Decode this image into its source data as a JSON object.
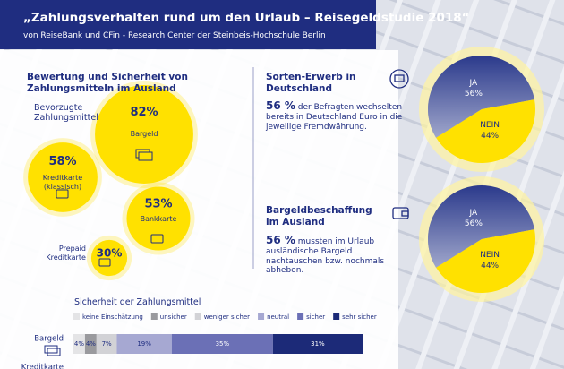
{
  "header": {
    "title": "„Zahlungsverhalten rund um den Urlaub – Reisegeldstudie 2018“",
    "subtitle": "von ReiseBank und CFin - Research Center der Steinbeis-Hochschule Berlin"
  },
  "chart_data": [
    {
      "type": "bubble",
      "title": "Bewertung und Sicherheit von Zahlungsmitteln im Ausland",
      "subtitle": "Bevorzugte Zahlungsmittel",
      "categories": [
        "Bargeld",
        "Kreditkarte (klassisch)",
        "Bankkarte",
        "Prepaid Kreditkarte"
      ],
      "values": [
        82,
        58,
        53,
        30
      ],
      "value_labels": [
        "82%",
        "58%",
        "53%",
        "30%"
      ],
      "color": "#ffe100"
    },
    {
      "type": "pie",
      "title": "Sorten-Erwerb in Deutschland",
      "highlight": "56 %",
      "text": "der Befragten wechselten bereits in Deutschland Euro in die jeweilige Fremdwährung.",
      "categories": [
        "JA",
        "NEIN"
      ],
      "values": [
        56,
        44
      ],
      "value_labels": [
        "56%",
        "44%"
      ],
      "colors": [
        "#2b3a8c",
        "#ffe100"
      ]
    },
    {
      "type": "pie",
      "title": "Bargeldbeschaffung im Ausland",
      "highlight": "56 %",
      "text": "mussten im Urlaub ausländische Bargeld nachtauschen bzw. nochmals abheben.",
      "categories": [
        "JA",
        "NEIN"
      ],
      "values": [
        56,
        44
      ],
      "value_labels": [
        "56%",
        "44%"
      ],
      "colors": [
        "#2b3a8c",
        "#ffe100"
      ]
    },
    {
      "type": "stacked-bar",
      "title": "Sicherheit der Zahlungsmittel",
      "categories": [
        "Bargeld",
        "Kreditkarte"
      ],
      "xlim": [
        0,
        100
      ],
      "series": [
        {
          "name": "keine Einschätzung",
          "color": "#e4e4e6",
          "values": [
            4,
            null
          ],
          "value_labels": [
            "4%",
            null
          ]
        },
        {
          "name": "unsicher",
          "color": "#9a9a9e",
          "values": [
            4,
            null
          ],
          "value_labels": [
            "4%",
            null
          ]
        },
        {
          "name": "weniger sicher",
          "color": "#d2d2d6",
          "values": [
            7,
            null
          ],
          "value_labels": [
            "7%",
            null
          ]
        },
        {
          "name": "neutral",
          "color": "#a6a8d2",
          "values": [
            19,
            null
          ],
          "value_labels": [
            "19%",
            null
          ]
        },
        {
          "name": "sicher",
          "color": "#6b70b6",
          "values": [
            35,
            null
          ],
          "value_labels": [
            "35%",
            null
          ]
        },
        {
          "name": "sehr sicher",
          "color": "#1c2a78",
          "values": [
            31,
            null
          ],
          "value_labels": [
            "31%",
            null
          ]
        }
      ]
    }
  ]
}
